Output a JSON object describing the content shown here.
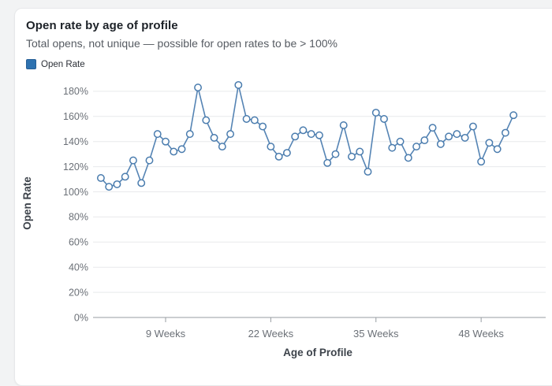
{
  "header": {
    "title": "Open rate by age of profile",
    "subtitle": "Total opens, not unique — possible for open rates to be > 100%"
  },
  "legend": {
    "label": "Open Rate",
    "swatch_color": "#2e72b0"
  },
  "chart_data": {
    "type": "line",
    "title": "Open rate by age of profile",
    "xlabel": "Age of Profile",
    "ylabel": "Open Rate",
    "series_name": "Open Rate",
    "x_unit": "weeks",
    "x_values_weeks": {
      "start": 1,
      "end": 52,
      "step": 1
    },
    "values": [
      111,
      104,
      106,
      112,
      125,
      107,
      125,
      146,
      140,
      132,
      134,
      146,
      183,
      157,
      143,
      136,
      146,
      185,
      158,
      157,
      152,
      136,
      128,
      131,
      144,
      149,
      146,
      145,
      123,
      130,
      153,
      128,
      132,
      116,
      163,
      158,
      135,
      140,
      127,
      136,
      141,
      151,
      138,
      144,
      146,
      143,
      152,
      124,
      139,
      134,
      147,
      161
    ],
    "values_unit": "%",
    "y_ticks": [
      "0%",
      "20%",
      "40%",
      "60%",
      "80%",
      "100%",
      "120%",
      "140%",
      "160%",
      "180%"
    ],
    "y_tick_step": 20,
    "ylim": [
      0,
      190
    ],
    "x_ticks": [
      {
        "week": 9,
        "label": "9 Weeks"
      },
      {
        "week": 22,
        "label": "22 Weeks"
      },
      {
        "week": 35,
        "label": "35 Weeks"
      },
      {
        "week": 48,
        "label": "48 Weeks"
      }
    ],
    "grid": "horizontal",
    "legend_position": "top-left",
    "marker": "open-circle",
    "colors": {
      "line": "#5584b4",
      "marker_stroke": "#4a7cae",
      "marker_fill": "#ffffff",
      "legend_swatch": "#2e72b0"
    }
  }
}
